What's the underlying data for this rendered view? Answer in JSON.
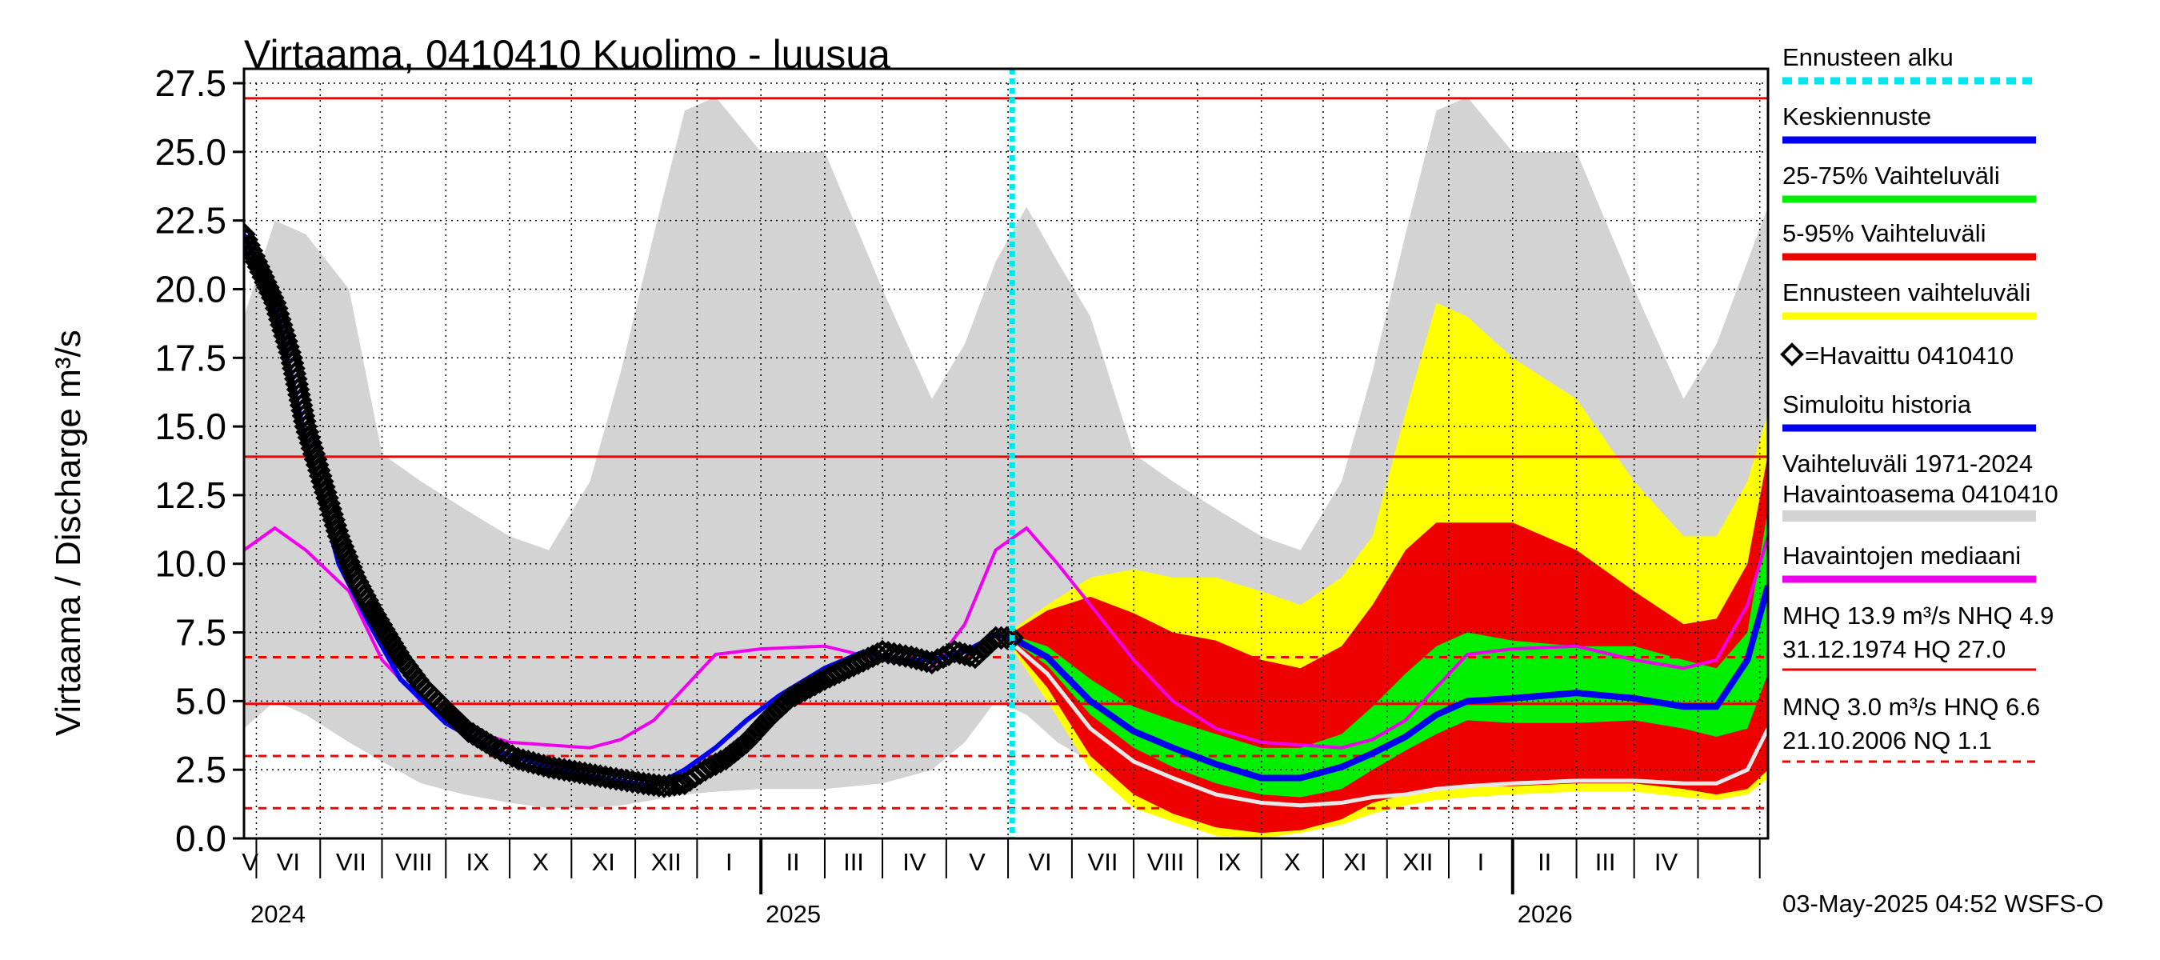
{
  "chart_data": {
    "type": "area",
    "title": "Virtaama, 0410410 Kuolimo - luusua",
    "ylabel": "Virtaama / Discharge   m³/s",
    "ylim": [
      0,
      27.5
    ],
    "yticks": [
      "0.0",
      "2.5",
      "5.0",
      "7.5",
      "10.0",
      "12.5",
      "15.0",
      "17.5",
      "20.0",
      "22.5",
      "25.0",
      "27.5"
    ],
    "x_start": "2024-04-25",
    "x_end": "2026-05-05",
    "forecast_start": "2025-05-03",
    "months": [
      "V",
      "VI",
      "VII",
      "VIII",
      "IX",
      "X",
      "XI",
      "XII",
      "I",
      "II",
      "III",
      "IV",
      "V",
      "VI",
      "VII",
      "VIII",
      "IX",
      "X",
      "XI",
      "XII",
      "I",
      "II",
      "III",
      "IV"
    ],
    "year_labels": [
      {
        "year": "2024",
        "date": "2024-05-01"
      },
      {
        "year": "2025",
        "date": "2025-01-01"
      },
      {
        "year": "2026",
        "date": "2026-01-01"
      }
    ],
    "hlines": [
      {
        "value": 26.95,
        "style": "solid"
      },
      {
        "value": 13.9,
        "style": "solid"
      },
      {
        "value": 4.9,
        "style": "solid"
      },
      {
        "value": 6.6,
        "style": "dashed"
      },
      {
        "value": 3.0,
        "style": "dashed"
      },
      {
        "value": 1.1,
        "style": "dashed"
      }
    ],
    "gray_range": {
      "dates": [
        "2024-04-25",
        "2024-05-10",
        "2024-05-25",
        "2024-06-15",
        "2024-07-01",
        "2024-07-20",
        "2024-08-10",
        "2024-09-01",
        "2024-09-20",
        "2024-10-10",
        "2024-10-25",
        "2024-11-10",
        "2024-11-25",
        "2024-12-10",
        "2025-01-01",
        "2025-02-01",
        "2025-03-01",
        "2025-03-25",
        "2025-04-10",
        "2025-04-25",
        "2025-05-10",
        "2025-05-25",
        "2025-06-10",
        "2025-07-01",
        "2025-07-20",
        "2025-08-10",
        "2025-09-01",
        "2025-09-20",
        "2025-10-10",
        "2025-10-25",
        "2025-11-10",
        "2025-11-25",
        "2025-12-10",
        "2026-01-01",
        "2026-02-01",
        "2026-03-01",
        "2026-03-25",
        "2026-04-10",
        "2026-04-25",
        "2026-05-05"
      ],
      "upper": [
        19.0,
        22.5,
        22.0,
        20.0,
        14.0,
        13.0,
        12.0,
        11.0,
        10.5,
        13.0,
        17.0,
        22.0,
        26.5,
        27.0,
        25.0,
        25.0,
        20.0,
        16.0,
        18.0,
        21.0,
        23.0,
        21.0,
        19.0,
        14.0,
        13.0,
        12.0,
        11.0,
        10.5,
        13.0,
        17.0,
        22.0,
        26.5,
        27.0,
        25.0,
        25.0,
        20.0,
        16.0,
        18.0,
        21.0,
        23.0
      ],
      "lower": [
        4.0,
        5.0,
        4.5,
        3.5,
        2.8,
        2.0,
        1.6,
        1.3,
        1.1,
        1.1,
        1.2,
        1.4,
        1.6,
        1.7,
        1.8,
        1.8,
        2.0,
        2.5,
        3.5,
        5.0,
        4.5,
        3.5,
        2.8,
        2.0,
        1.6,
        1.3,
        1.1,
        1.1,
        1.2,
        1.4,
        1.6,
        1.7,
        1.8,
        1.8,
        2.0,
        2.5,
        3.5,
        5.0,
        5.0,
        5.0
      ]
    },
    "forecast_bands": {
      "dates": [
        "2025-05-03",
        "2025-05-20",
        "2025-06-10",
        "2025-07-01",
        "2025-07-20",
        "2025-08-10",
        "2025-09-01",
        "2025-09-20",
        "2025-10-10",
        "2025-10-25",
        "2025-11-10",
        "2025-11-25",
        "2025-12-10",
        "2026-01-01",
        "2026-02-01",
        "2026-03-01",
        "2026-03-25",
        "2026-04-10",
        "2026-04-25",
        "2026-05-05"
      ],
      "yellow_upper": [
        7.6,
        8.5,
        9.5,
        9.8,
        9.5,
        9.5,
        9.0,
        8.5,
        9.5,
        11.0,
        15.5,
        19.5,
        19.0,
        17.5,
        16.0,
        13.0,
        11.0,
        11.0,
        13.0,
        15.5
      ],
      "red_upper": [
        7.5,
        8.3,
        8.8,
        8.2,
        7.5,
        7.2,
        6.5,
        6.2,
        7.0,
        8.5,
        10.5,
        11.5,
        11.5,
        11.5,
        10.5,
        9.0,
        7.8,
        8.0,
        10.0,
        14.0
      ],
      "green_upper": [
        7.4,
        7.0,
        5.8,
        4.8,
        4.3,
        3.8,
        3.3,
        3.3,
        3.8,
        4.8,
        6.0,
        7.0,
        7.5,
        7.2,
        7.0,
        7.0,
        6.5,
        6.2,
        7.5,
        12.0
      ],
      "green_lower": [
        7.2,
        6.3,
        4.5,
        3.3,
        2.6,
        2.0,
        1.6,
        1.5,
        1.8,
        2.5,
        3.2,
        3.8,
        4.3,
        4.2,
        4.2,
        4.3,
        4.0,
        3.7,
        4.0,
        6.0
      ],
      "red_lower": [
        7.0,
        5.5,
        3.0,
        1.6,
        0.9,
        0.4,
        0.2,
        0.3,
        0.7,
        1.3,
        1.6,
        1.8,
        1.9,
        1.9,
        2.0,
        2.0,
        1.8,
        1.6,
        1.8,
        2.5
      ],
      "yellow_lower": [
        6.9,
        5.0,
        2.5,
        1.1,
        0.6,
        0.1,
        0.0,
        0.2,
        0.5,
        0.9,
        1.2,
        1.4,
        1.5,
        1.6,
        1.7,
        1.7,
        1.5,
        1.4,
        1.6,
        2.2
      ]
    },
    "median": {
      "dates": [
        "2024-04-25",
        "2024-05-10",
        "2024-05-25",
        "2024-06-15",
        "2024-07-01",
        "2024-07-20",
        "2024-08-10",
        "2024-09-01",
        "2024-09-20",
        "2024-10-10",
        "2024-10-25",
        "2024-11-10",
        "2024-11-25",
        "2024-12-10",
        "2025-01-01",
        "2025-02-01",
        "2025-03-01",
        "2025-03-25",
        "2025-04-10",
        "2025-04-25",
        "2025-05-10",
        "2025-05-25",
        "2025-06-10",
        "2025-07-01",
        "2025-07-20",
        "2025-08-10",
        "2025-09-01",
        "2025-09-20",
        "2025-10-10",
        "2025-10-25",
        "2025-11-10",
        "2025-11-25",
        "2025-12-10",
        "2026-01-01",
        "2026-02-01",
        "2026-03-01",
        "2026-03-25",
        "2026-04-10",
        "2026-04-25",
        "2026-05-05"
      ],
      "values": [
        10.5,
        11.3,
        10.5,
        9.0,
        6.5,
        5.0,
        4.0,
        3.5,
        3.4,
        3.3,
        3.6,
        4.3,
        5.5,
        6.7,
        6.9,
        7.0,
        6.5,
        6.2,
        7.8,
        10.5,
        11.3,
        10.0,
        8.5,
        6.5,
        5.0,
        4.0,
        3.5,
        3.4,
        3.3,
        3.6,
        4.3,
        5.5,
        6.7,
        6.9,
        7.0,
        6.5,
        6.2,
        6.5,
        8.5,
        11.0
      ]
    },
    "simulated_history": {
      "dates": [
        "2024-04-25",
        "2024-05-10",
        "2024-05-25",
        "2024-06-10",
        "2024-06-25",
        "2024-07-10",
        "2024-08-01",
        "2024-08-25",
        "2024-09-20",
        "2024-10-15",
        "2024-11-10",
        "2024-11-25",
        "2024-12-10",
        "2024-12-25",
        "2025-01-10",
        "2025-02-01",
        "2025-02-20",
        "2025-03-10",
        "2025-03-25",
        "2025-04-10",
        "2025-04-25",
        "2025-05-03"
      ],
      "values": [
        22.0,
        19.5,
        14.5,
        10.0,
        7.8,
        5.8,
        4.2,
        3.2,
        2.6,
        2.2,
        1.9,
        2.5,
        3.3,
        4.3,
        5.2,
        6.2,
        6.8,
        6.5,
        6.5,
        6.8,
        7.4,
        7.3
      ]
    },
    "observed": {
      "dates": [
        "2024-04-25",
        "2024-05-01",
        "2024-05-10",
        "2024-05-18",
        "2024-05-25",
        "2024-06-02",
        "2024-06-10",
        "2024-06-18",
        "2024-06-25",
        "2024-07-02",
        "2024-07-10",
        "2024-07-20",
        "2024-08-01",
        "2024-08-12",
        "2024-08-25",
        "2024-09-05",
        "2024-09-20",
        "2024-10-05",
        "2024-10-20",
        "2024-11-05",
        "2024-11-15",
        "2024-11-25",
        "2024-12-05",
        "2024-12-15",
        "2024-12-25",
        "2025-01-05",
        "2025-01-15",
        "2025-02-01",
        "2025-02-15",
        "2025-03-01",
        "2025-03-15",
        "2025-03-25",
        "2025-04-05",
        "2025-04-15",
        "2025-04-25",
        "2025-05-03"
      ],
      "values": [
        22.0,
        21.0,
        19.5,
        17.5,
        15.0,
        13.0,
        11.0,
        9.5,
        8.5,
        7.6,
        6.6,
        5.6,
        4.7,
        3.9,
        3.3,
        2.9,
        2.6,
        2.4,
        2.2,
        2.0,
        1.9,
        2.0,
        2.5,
        2.9,
        3.5,
        4.4,
        5.1,
        5.8,
        6.3,
        6.8,
        6.6,
        6.4,
        6.8,
        6.6,
        7.3,
        7.3
      ]
    },
    "forecast_mean": {
      "dates": [
        "2025-05-03",
        "2025-05-20",
        "2025-06-10",
        "2025-07-01",
        "2025-07-20",
        "2025-08-10",
        "2025-09-01",
        "2025-09-20",
        "2025-10-10",
        "2025-10-25",
        "2025-11-10",
        "2025-11-25",
        "2025-12-10",
        "2026-01-01",
        "2026-02-01",
        "2026-03-01",
        "2026-03-25",
        "2026-04-10",
        "2026-04-25",
        "2026-05-05"
      ],
      "values": [
        7.3,
        6.6,
        5.0,
        3.9,
        3.3,
        2.7,
        2.2,
        2.2,
        2.6,
        3.1,
        3.7,
        4.5,
        5.0,
        5.1,
        5.3,
        5.1,
        4.8,
        4.8,
        6.5,
        9.2
      ]
    },
    "white_line": {
      "dates": [
        "2025-05-03",
        "2025-05-20",
        "2025-06-10",
        "2025-07-01",
        "2025-07-20",
        "2025-08-10",
        "2025-09-01",
        "2025-09-20",
        "2025-10-10",
        "2025-10-25",
        "2025-11-10",
        "2025-11-25",
        "2025-12-10",
        "2026-01-01",
        "2026-02-01",
        "2026-03-01",
        "2026-03-25",
        "2026-04-10",
        "2026-04-25",
        "2026-05-05"
      ],
      "values": [
        7.1,
        6.0,
        4.0,
        2.8,
        2.2,
        1.6,
        1.3,
        1.2,
        1.3,
        1.5,
        1.6,
        1.8,
        1.9,
        2.0,
        2.1,
        2.1,
        2.0,
        2.0,
        2.5,
        4.0
      ]
    },
    "legend": [
      {
        "label": "Ennusteen alku",
        "color": "#00e5ee",
        "style": "dotted"
      },
      {
        "label": "Keskiennuste",
        "color": "#0000ee",
        "style": "line"
      },
      {
        "label": "25-75% Vaihteluväli",
        "color": "#00ee00",
        "style": "line"
      },
      {
        "label": "5-95% Vaihteluväli",
        "color": "#ee0000",
        "style": "line"
      },
      {
        "label": "Ennusteen vaihteluväli",
        "color": "#ffff00",
        "style": "line"
      },
      {
        "label": "=Havaittu 0410410",
        "color": "#000000",
        "style": "marker"
      },
      {
        "label": "Simuloitu historia",
        "color": "#0000ee",
        "style": "line"
      },
      {
        "label": "Vaihteluväli 1971-2024",
        "label2": " Havaintoasema 0410410",
        "color": "#d3d3d3",
        "style": "line"
      },
      {
        "label": "Havaintojen mediaani",
        "color": "#ee00ee",
        "style": "line"
      }
    ],
    "stats": {
      "line1": "MHQ 13.9 m³/s NHQ  4.9",
      "line2": "31.12.1974 HQ 27.0",
      "line3": "MNQ  3.0 m³/s HNQ  6.6",
      "line4": "21.10.2006 NQ  1.1"
    },
    "footer": "03-May-2025 04:52 WSFS-O",
    "colors": {
      "gray": "#d3d3d3",
      "yellow": "#ffff00",
      "red": "#ee0000",
      "green": "#00ee00",
      "blue": "#0000ee",
      "magenta": "#ee00ee",
      "cyan": "#00e5ee",
      "white": "#e8e8e8",
      "black": "#000000"
    }
  }
}
